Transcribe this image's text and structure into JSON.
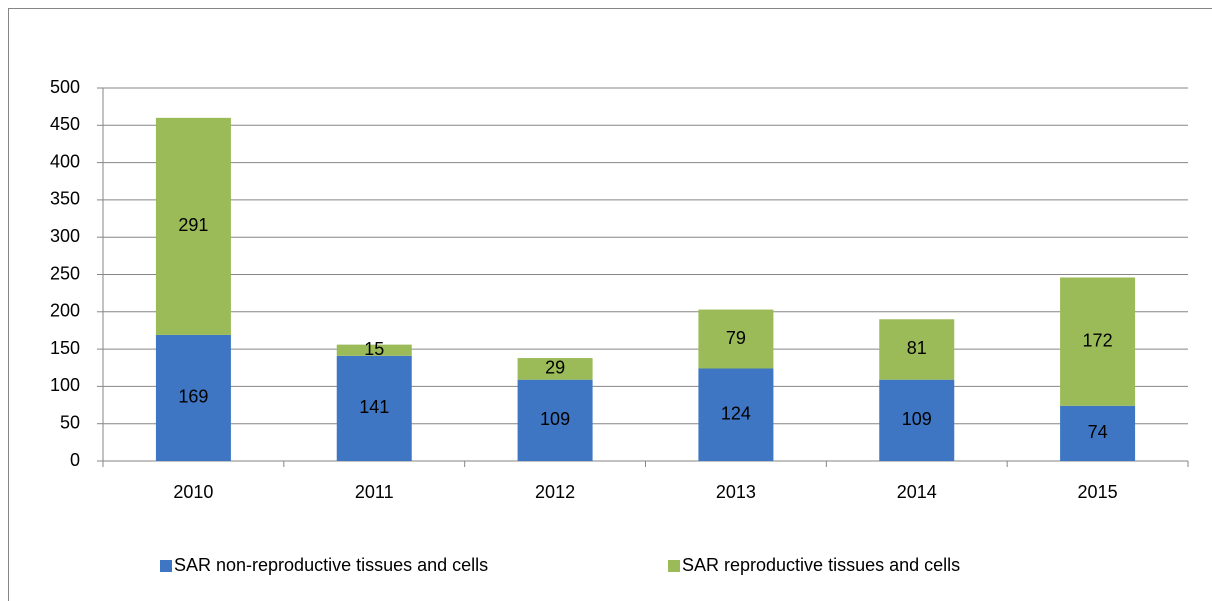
{
  "chart_data": {
    "type": "stacked_bar",
    "categories": [
      "2010",
      "2011",
      "2012",
      "2013",
      "2014",
      "2015"
    ],
    "series": [
      {
        "name": "SAR non-reproductive tissues and cells",
        "color": "#3f76c4",
        "values": [
          169,
          141,
          109,
          124,
          109,
          74
        ]
      },
      {
        "name": "SAR reproductive tissues and cells",
        "color": "#9bbb59",
        "values": [
          291,
          15,
          29,
          79,
          81,
          172
        ]
      }
    ],
    "ylim": [
      0,
      500
    ],
    "yticks": [
      0,
      50,
      100,
      150,
      200,
      250,
      300,
      350,
      400,
      450,
      500
    ],
    "grid": true,
    "legend": "bottom"
  }
}
